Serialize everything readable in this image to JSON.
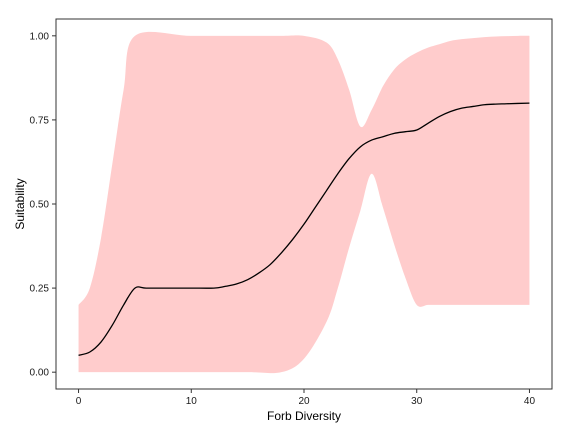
{
  "chart_data": {
    "type": "line",
    "title": "",
    "xlabel": "Forb Diversity",
    "ylabel": "Suitability",
    "xlim": [
      -2,
      42
    ],
    "ylim": [
      -0.05,
      1.05
    ],
    "xticks": [
      0,
      10,
      20,
      30,
      40
    ],
    "yticks": [
      0.0,
      0.25,
      0.5,
      0.75,
      1.0
    ],
    "xtick_labels": [
      "0",
      "10",
      "20",
      "30",
      "40"
    ],
    "ytick_labels": [
      "0.00",
      "0.25",
      "0.50",
      "0.75",
      "1.00"
    ],
    "grid": false,
    "legend": "none",
    "colors": {
      "band": "#ffcccc",
      "line": "#000000",
      "frame": "#333333"
    },
    "series": [
      {
        "type": "line",
        "x": [
          0,
          1,
          2,
          3,
          4,
          5,
          6,
          8,
          10,
          12,
          13,
          14,
          15,
          16,
          17,
          18,
          19,
          20,
          21,
          22,
          23,
          24,
          25,
          26,
          27,
          28,
          29,
          30,
          31,
          32,
          33,
          34,
          35,
          36,
          37,
          38,
          40
        ],
        "y": [
          0.05,
          0.06,
          0.09,
          0.14,
          0.2,
          0.25,
          0.25,
          0.25,
          0.25,
          0.25,
          0.255,
          0.262,
          0.275,
          0.295,
          0.32,
          0.355,
          0.395,
          0.44,
          0.49,
          0.54,
          0.59,
          0.635,
          0.67,
          0.69,
          0.7,
          0.71,
          0.715,
          0.72,
          0.74,
          0.76,
          0.775,
          0.785,
          0.79,
          0.795,
          0.797,
          0.798,
          0.8
        ]
      },
      {
        "type": "band",
        "x": [
          0,
          1,
          2,
          3,
          4,
          5,
          10,
          15,
          18,
          20,
          22,
          23,
          24,
          25,
          26,
          27,
          28,
          29,
          30,
          31,
          32,
          33,
          34,
          35,
          36,
          37,
          38,
          39,
          40
        ],
        "lower": [
          0.0,
          0.0,
          0.0,
          0.0,
          0.0,
          0.0,
          0.0,
          0.0,
          0.0,
          0.04,
          0.15,
          0.25,
          0.37,
          0.48,
          0.59,
          0.49,
          0.38,
          0.28,
          0.2,
          0.2,
          0.2,
          0.2,
          0.2,
          0.2,
          0.2,
          0.2,
          0.2,
          0.2,
          0.2
        ],
        "upper": [
          0.2,
          0.25,
          0.4,
          0.62,
          0.84,
          1.0,
          1.0,
          1.0,
          1.0,
          1.0,
          0.98,
          0.93,
          0.84,
          0.73,
          0.78,
          0.85,
          0.9,
          0.93,
          0.95,
          0.965,
          0.975,
          0.985,
          0.99,
          0.993,
          0.996,
          0.998,
          0.999,
          1.0,
          1.0
        ]
      }
    ]
  }
}
